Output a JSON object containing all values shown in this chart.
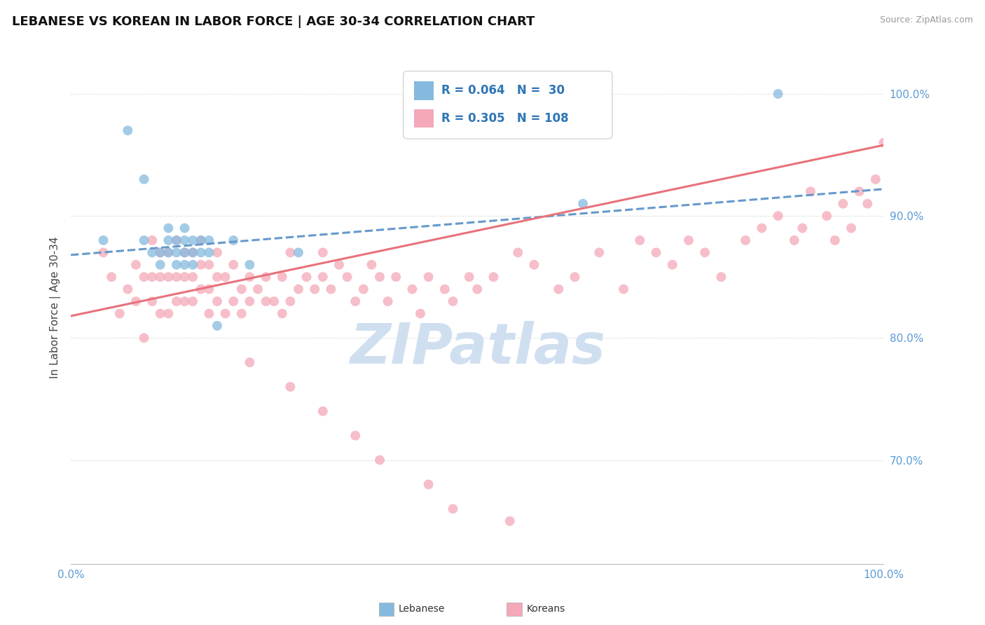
{
  "title": "LEBANESE VS KOREAN IN LABOR FORCE | AGE 30-34 CORRELATION CHART",
  "source_text": "Source: ZipAtlas.com",
  "ylabel": "In Labor Force | Age 30-34",
  "xlim": [
    0.0,
    1.0
  ],
  "ylim": [
    0.615,
    1.035
  ],
  "y_ticks_right": [
    1.0,
    0.9,
    0.8,
    0.7
  ],
  "y_tick_labels_right": [
    "100.0%",
    "90.0%",
    "80.0%",
    "70.0%"
  ],
  "legend_r1": "R = 0.064",
  "legend_n1": "N =  30",
  "legend_r2": "R = 0.305",
  "legend_n2": "N = 108",
  "color_lebanese": "#85BADE",
  "color_koreans": "#F4A8B8",
  "color_line_leb": "#6699CC",
  "color_line_kor": "#E8727A",
  "watermark_text": "ZIPatlas",
  "watermark_color": "#D0DFF0",
  "title_fontsize": 13,
  "label_fontsize": 11,
  "tick_fontsize": 11,
  "leb_line_x": [
    0.0,
    1.0
  ],
  "leb_line_y": [
    0.868,
    0.922
  ],
  "kor_line_x": [
    0.0,
    1.0
  ],
  "kor_line_y": [
    0.818,
    0.958
  ],
  "lebanese_x": [
    0.04,
    0.07,
    0.09,
    0.09,
    0.1,
    0.11,
    0.11,
    0.12,
    0.12,
    0.12,
    0.13,
    0.13,
    0.13,
    0.14,
    0.14,
    0.14,
    0.14,
    0.15,
    0.15,
    0.15,
    0.16,
    0.16,
    0.17,
    0.17,
    0.18,
    0.2,
    0.22,
    0.28,
    0.63,
    0.87
  ],
  "lebanese_y": [
    0.88,
    0.97,
    0.88,
    0.93,
    0.87,
    0.86,
    0.87,
    0.87,
    0.88,
    0.89,
    0.86,
    0.87,
    0.88,
    0.86,
    0.87,
    0.88,
    0.89,
    0.86,
    0.87,
    0.88,
    0.87,
    0.88,
    0.87,
    0.88,
    0.81,
    0.88,
    0.86,
    0.87,
    0.91,
    1.0
  ],
  "korean_x": [
    0.04,
    0.05,
    0.06,
    0.07,
    0.08,
    0.08,
    0.09,
    0.09,
    0.1,
    0.1,
    0.1,
    0.11,
    0.11,
    0.11,
    0.12,
    0.12,
    0.12,
    0.13,
    0.13,
    0.13,
    0.14,
    0.14,
    0.14,
    0.15,
    0.15,
    0.15,
    0.16,
    0.16,
    0.16,
    0.17,
    0.17,
    0.17,
    0.18,
    0.18,
    0.18,
    0.19,
    0.19,
    0.2,
    0.2,
    0.21,
    0.21,
    0.22,
    0.22,
    0.23,
    0.24,
    0.24,
    0.25,
    0.26,
    0.26,
    0.27,
    0.27,
    0.28,
    0.29,
    0.3,
    0.31,
    0.31,
    0.32,
    0.33,
    0.34,
    0.35,
    0.36,
    0.37,
    0.38,
    0.39,
    0.4,
    0.42,
    0.43,
    0.44,
    0.46,
    0.47,
    0.49,
    0.5,
    0.52,
    0.55,
    0.57,
    0.6,
    0.62,
    0.65,
    0.68,
    0.7,
    0.72,
    0.74,
    0.76,
    0.78,
    0.8,
    0.83,
    0.85,
    0.87,
    0.89,
    0.9,
    0.91,
    0.93,
    0.94,
    0.95,
    0.96,
    0.97,
    0.98,
    0.99,
    1.0,
    0.22,
    0.27,
    0.31,
    0.35,
    0.38,
    0.44,
    0.47,
    0.54
  ],
  "korean_y": [
    0.87,
    0.85,
    0.82,
    0.84,
    0.83,
    0.86,
    0.8,
    0.85,
    0.83,
    0.85,
    0.88,
    0.82,
    0.85,
    0.87,
    0.82,
    0.85,
    0.87,
    0.83,
    0.85,
    0.88,
    0.83,
    0.85,
    0.87,
    0.83,
    0.85,
    0.87,
    0.84,
    0.86,
    0.88,
    0.82,
    0.84,
    0.86,
    0.83,
    0.85,
    0.87,
    0.82,
    0.85,
    0.83,
    0.86,
    0.82,
    0.84,
    0.83,
    0.85,
    0.84,
    0.83,
    0.85,
    0.83,
    0.82,
    0.85,
    0.83,
    0.87,
    0.84,
    0.85,
    0.84,
    0.85,
    0.87,
    0.84,
    0.86,
    0.85,
    0.83,
    0.84,
    0.86,
    0.85,
    0.83,
    0.85,
    0.84,
    0.82,
    0.85,
    0.84,
    0.83,
    0.85,
    0.84,
    0.85,
    0.87,
    0.86,
    0.84,
    0.85,
    0.87,
    0.84,
    0.88,
    0.87,
    0.86,
    0.88,
    0.87,
    0.85,
    0.88,
    0.89,
    0.9,
    0.88,
    0.89,
    0.92,
    0.9,
    0.88,
    0.91,
    0.89,
    0.92,
    0.91,
    0.93,
    0.96,
    0.78,
    0.76,
    0.74,
    0.72,
    0.7,
    0.68,
    0.66,
    0.65
  ]
}
